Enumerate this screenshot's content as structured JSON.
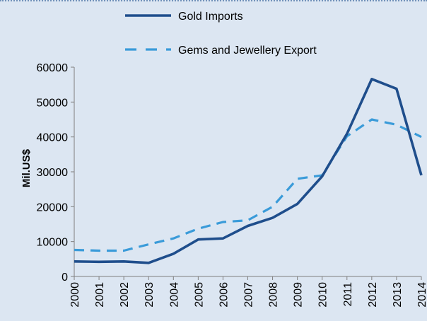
{
  "chart_data": {
    "type": "line",
    "ylabel": "Mil.US$",
    "xlabel": "",
    "title": "",
    "ylim": [
      0,
      60000
    ],
    "yticks": [
      0,
      10000,
      20000,
      30000,
      40000,
      50000,
      60000
    ],
    "x": [
      "2000",
      "2001",
      "2002",
      "2003",
      "2004",
      "2005",
      "2006",
      "2007",
      "2008",
      "2009",
      "2010",
      "2011",
      "2012",
      "2013",
      "2014"
    ],
    "legend_position": "top",
    "grid": false,
    "series": [
      {
        "name": "Gold Imports",
        "style": "solid",
        "color": "#1f4e8c",
        "values": [
          4300,
          4200,
          4300,
          3900,
          6500,
          10600,
          10900,
          14500,
          16800,
          20800,
          28700,
          40900,
          56600,
          53800,
          29000
        ]
      },
      {
        "name": "Gems and Jewellery Export",
        "style": "dashed",
        "color": "#3a9bd9",
        "values": [
          7600,
          7400,
          7400,
          9200,
          10900,
          13700,
          15600,
          16100,
          20000,
          28000,
          29000,
          40200,
          45000,
          43500,
          40000
        ]
      }
    ]
  }
}
